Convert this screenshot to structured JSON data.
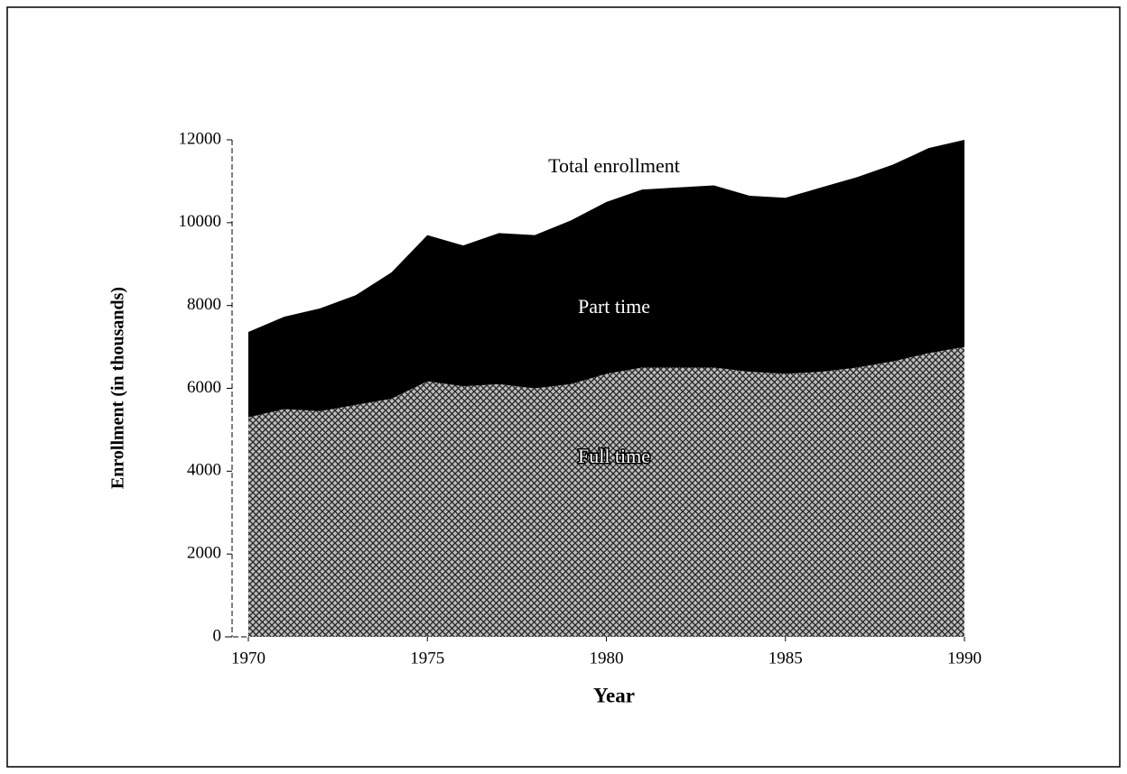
{
  "chart_data": {
    "type": "stacked-area",
    "annotation": "Total enrollment",
    "xlabel": "Year",
    "ylabel": "Enrollment (in thousands)",
    "x": [
      1970,
      1971,
      1972,
      1973,
      1974,
      1975,
      1976,
      1977,
      1978,
      1979,
      1980,
      1981,
      1982,
      1983,
      1984,
      1985,
      1986,
      1987,
      1988,
      1989,
      1990
    ],
    "series": [
      {
        "name": "Full time",
        "color": "#808080",
        "values": [
          5300,
          5500,
          5450,
          5600,
          5750,
          6170,
          6050,
          6100,
          6000,
          6100,
          6350,
          6500,
          6500,
          6500,
          6400,
          6350,
          6400,
          6500,
          6650,
          6850,
          7000
        ]
      },
      {
        "name": "Part time",
        "color": "#000000",
        "values": [
          2060,
          2230,
          2480,
          2650,
          3050,
          3530,
          3400,
          3650,
          3700,
          3950,
          4150,
          4300,
          4350,
          4400,
          4250,
          4250,
          4450,
          4600,
          4750,
          4950,
          5000
        ]
      }
    ],
    "xlim": [
      1970,
      1990
    ],
    "xticks": [
      1970,
      1975,
      1980,
      1985,
      1990
    ],
    "ylim": [
      0,
      12000
    ],
    "yticks": [
      0,
      2000,
      4000,
      6000,
      8000,
      10000,
      12000
    ]
  }
}
